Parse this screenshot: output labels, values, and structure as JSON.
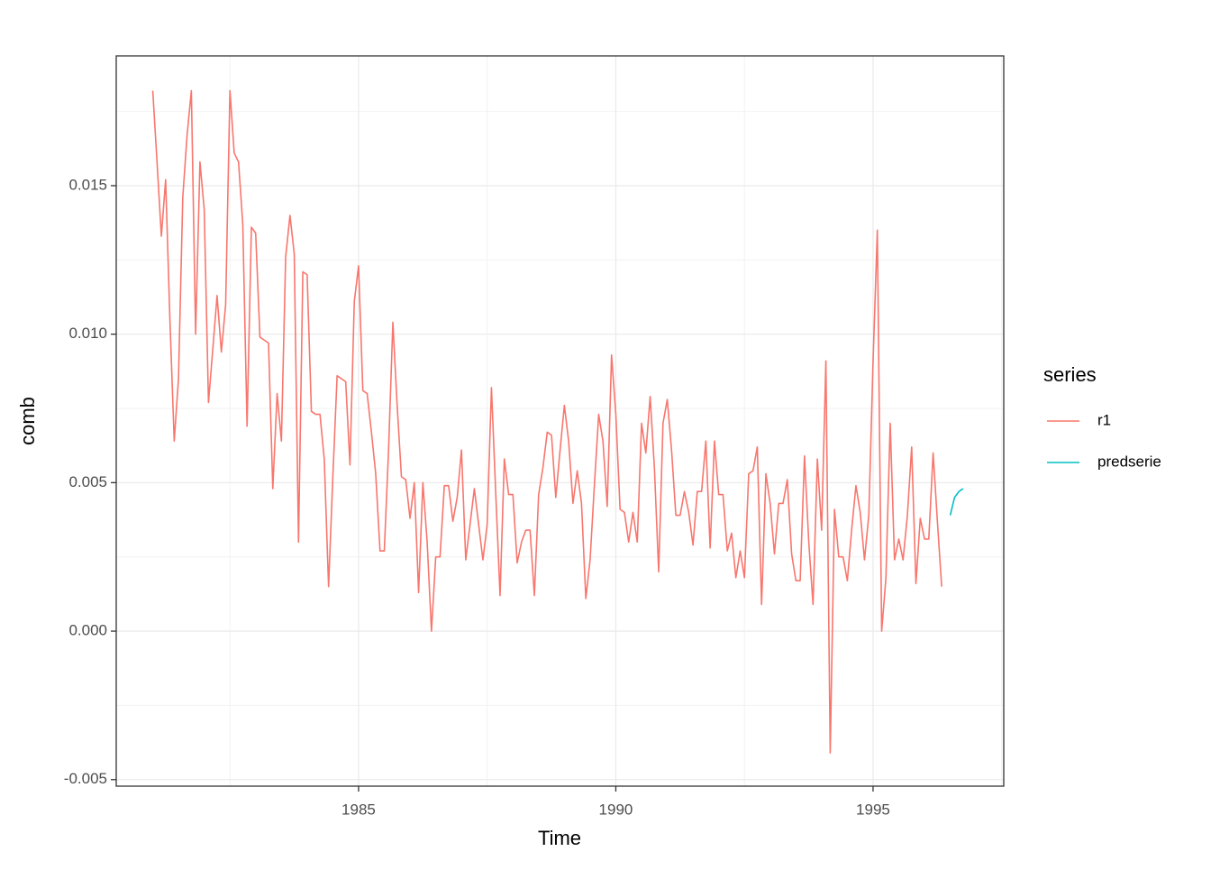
{
  "chart_data": {
    "type": "line",
    "xlabel": "Time",
    "ylabel": "comb",
    "legend_title": "series",
    "legend_position": "right",
    "grid": true,
    "xlim": [
      1980.29,
      1997.54
    ],
    "xticks": [
      1985,
      1990,
      1995
    ],
    "ylim": [
      -0.00522,
      0.01937
    ],
    "yticks": [
      -0.005,
      {
        "value": 0,
        "label": "0.000"
      },
      0.005,
      {
        "value": 0.01,
        "label": "0.010"
      },
      0.015
    ],
    "series": [
      {
        "name": "r1",
        "color": "#F8766D",
        "x": [
          1981,
          1981.083,
          1981.167,
          1981.25,
          1981.333,
          1981.417,
          1981.5,
          1981.583,
          1981.667,
          1981.75,
          1981.833,
          1981.917,
          1982,
          1982.083,
          1982.167,
          1982.25,
          1982.333,
          1982.417,
          1982.5,
          1982.583,
          1982.667,
          1982.75,
          1982.833,
          1982.917,
          1983,
          1983.083,
          1983.167,
          1983.25,
          1983.333,
          1983.417,
          1983.5,
          1983.583,
          1983.667,
          1983.75,
          1983.833,
          1983.917,
          1984,
          1984.083,
          1984.167,
          1984.25,
          1984.333,
          1984.417,
          1984.5,
          1984.583,
          1984.667,
          1984.75,
          1984.833,
          1984.917,
          1985,
          1985.083,
          1985.167,
          1985.25,
          1985.333,
          1985.417,
          1985.5,
          1985.583,
          1985.667,
          1985.75,
          1985.833,
          1985.917,
          1986,
          1986.083,
          1986.167,
          1986.25,
          1986.333,
          1986.417,
          1986.5,
          1986.583,
          1986.667,
          1986.75,
          1986.833,
          1986.917,
          1987,
          1987.083,
          1987.167,
          1987.25,
          1987.333,
          1987.417,
          1987.5,
          1987.583,
          1987.667,
          1987.75,
          1987.833,
          1987.917,
          1988,
          1988.083,
          1988.167,
          1988.25,
          1988.333,
          1988.417,
          1988.5,
          1988.583,
          1988.667,
          1988.75,
          1988.833,
          1988.917,
          1989,
          1989.083,
          1989.167,
          1989.25,
          1989.333,
          1989.417,
          1989.5,
          1989.583,
          1989.667,
          1989.75,
          1989.833,
          1989.917,
          1990,
          1990.083,
          1990.167,
          1990.25,
          1990.333,
          1990.417,
          1990.5,
          1990.583,
          1990.667,
          1990.75,
          1990.833,
          1990.917,
          1991,
          1991.083,
          1991.167,
          1991.25,
          1991.333,
          1991.417,
          1991.5,
          1991.583,
          1991.667,
          1991.75,
          1991.833,
          1991.917,
          1992,
          1992.083,
          1992.167,
          1992.25,
          1992.333,
          1992.417,
          1992.5,
          1992.583,
          1992.667,
          1992.75,
          1992.833,
          1992.917,
          1993,
          1993.083,
          1993.167,
          1993.25,
          1993.333,
          1993.417,
          1993.5,
          1993.583,
          1993.667,
          1993.75,
          1993.833,
          1993.917,
          1994,
          1994.083,
          1994.167,
          1994.25,
          1994.333,
          1994.417,
          1994.5,
          1994.583,
          1994.667,
          1994.75,
          1994.833,
          1994.917,
          1995,
          1995.083,
          1995.167,
          1995.25,
          1995.333,
          1995.417,
          1995.5,
          1995.583,
          1995.667,
          1995.75,
          1995.833,
          1995.917,
          1996,
          1996.083,
          1996.167,
          1996.25,
          1996.333
        ],
        "values": [
          0.0182,
          0.0158,
          0.0133,
          0.0152,
          0.0105,
          0.0064,
          0.0085,
          0.0146,
          0.0167,
          0.0182,
          0.01,
          0.0158,
          0.0142,
          0.0077,
          0.0095,
          0.0113,
          0.0094,
          0.011,
          0.0182,
          0.0161,
          0.0158,
          0.0137,
          0.0069,
          0.0136,
          0.0134,
          0.0099,
          0.0098,
          0.0097,
          0.0048,
          0.008,
          0.0064,
          0.0126,
          0.014,
          0.0127,
          0.003,
          0.0121,
          0.012,
          0.0074,
          0.0073,
          0.0073,
          0.0058,
          0.0015,
          0.0052,
          0.0086,
          0.0085,
          0.0084,
          0.0056,
          0.0111,
          0.0123,
          0.0081,
          0.008,
          0.0067,
          0.0053,
          0.0027,
          0.0027,
          0.0061,
          0.0104,
          0.0076,
          0.0052,
          0.0051,
          0.0038,
          0.005,
          0.0013,
          0.005,
          0.003,
          0.0,
          0.0025,
          0.0025,
          0.0049,
          0.0049,
          0.0037,
          0.0045,
          0.0061,
          0.0024,
          0.0036,
          0.0048,
          0.0036,
          0.0024,
          0.0036,
          0.0082,
          0.0046,
          0.0012,
          0.0058,
          0.0046,
          0.0046,
          0.0023,
          0.003,
          0.0034,
          0.0034,
          0.0012,
          0.0046,
          0.0055,
          0.0067,
          0.0066,
          0.0045,
          0.0061,
          0.0076,
          0.0064,
          0.0043,
          0.0054,
          0.0043,
          0.0011,
          0.0024,
          0.0049,
          0.0073,
          0.0064,
          0.0042,
          0.0093,
          0.0073,
          0.0041,
          0.004,
          0.003,
          0.004,
          0.003,
          0.007,
          0.006,
          0.0079,
          0.0055,
          0.002,
          0.007,
          0.0078,
          0.0061,
          0.0039,
          0.0039,
          0.0047,
          0.004,
          0.0029,
          0.0047,
          0.0047,
          0.0064,
          0.0028,
          0.0064,
          0.0046,
          0.0046,
          0.0027,
          0.0033,
          0.0018,
          0.0027,
          0.0018,
          0.0053,
          0.0054,
          0.0062,
          0.0009,
          0.0053,
          0.0043,
          0.0026,
          0.0043,
          0.0043,
          0.0051,
          0.0026,
          0.0017,
          0.0017,
          0.0059,
          0.003,
          0.0009,
          0.0058,
          0.0034,
          0.0091,
          -0.0041,
          0.0041,
          0.0025,
          0.0025,
          0.0017,
          0.0034,
          0.0049,
          0.004,
          0.0024,
          0.0039,
          0.0091,
          0.0135,
          0.0,
          0.0018,
          0.007,
          0.0024,
          0.0031,
          0.0024,
          0.0039,
          0.0062,
          0.0016,
          0.0038,
          0.0031,
          0.0031,
          0.006,
          0.0037,
          0.0015
        ]
      },
      {
        "name": "predserie",
        "color": "#00BFC4",
        "x": [
          1996.5,
          1996.583,
          1996.667,
          1996.75
        ],
        "values": [
          0.0039,
          0.0045,
          0.0047,
          0.0048
        ]
      }
    ]
  }
}
